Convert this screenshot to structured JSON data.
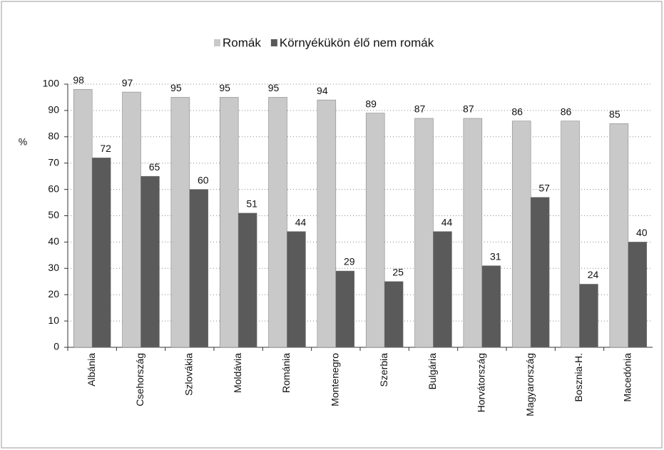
{
  "chart_data": {
    "type": "bar",
    "categories": [
      "Albánia",
      "Csehország",
      "Szlovákia",
      "Moldávia",
      "Románia",
      "Montenegro",
      "Szerbia",
      "Bulgária",
      "Horvátország",
      "Magyarország",
      "Bosznia-H.",
      "Macedónia"
    ],
    "series": [
      {
        "name": "Romák",
        "color": "#c9c9c9",
        "values": [
          98,
          97,
          95,
          95,
          95,
          94,
          89,
          87,
          87,
          86,
          86,
          85
        ]
      },
      {
        "name": "Környékükön élő nem romák",
        "color": "#5a5a5a",
        "values": [
          72,
          65,
          60,
          51,
          44,
          29,
          25,
          44,
          31,
          57,
          24,
          40
        ]
      }
    ],
    "y_label": "%",
    "ylim": [
      0,
      100
    ],
    "yticks": [
      0,
      10,
      20,
      30,
      40,
      50,
      60,
      70,
      80,
      90,
      100
    ],
    "grid": true,
    "legend": "top"
  }
}
